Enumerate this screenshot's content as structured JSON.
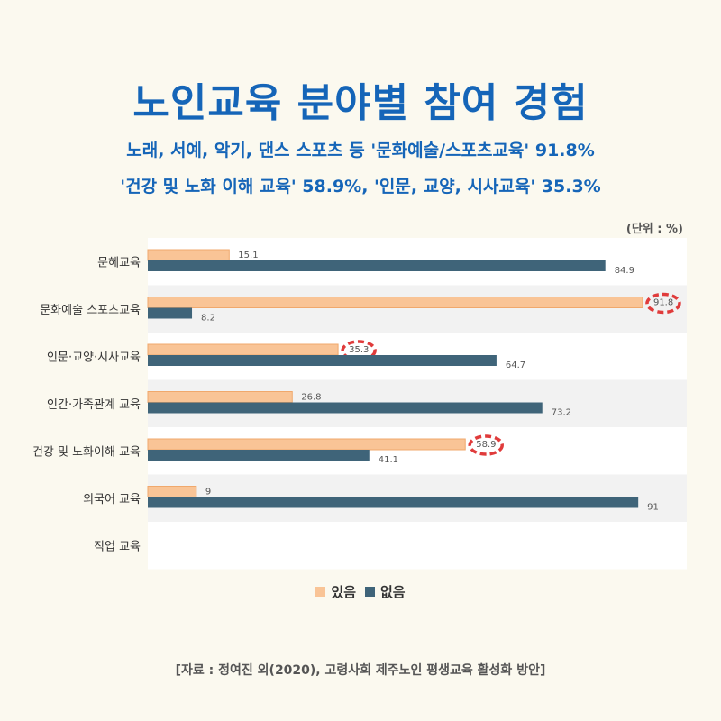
{
  "title": "노인교육 분야별 참여 경험",
  "subtitle_line1": "노래, 서예, 악기, 댄스 스포츠 등 '문화예술/스포츠교육' 91.8%",
  "subtitle_line2": "'건강 및 노화 이해 교육' 58.9%, '인문, 교양, 시사교육' 35.3%",
  "unit": "(단위 : %)",
  "source": "[자료 : 정여진 외(2020), 고령사회 제주노인 평생교육 활성화 방안]",
  "colors": {
    "yes": "#f9c496",
    "yes_stroke": "#f0a86c",
    "no": "#3f6479",
    "highlight": "#e03b3b",
    "band": "#f2f2f2"
  },
  "chart_data": {
    "type": "bar",
    "orientation": "horizontal",
    "categories": [
      "문헤교육",
      "문화예술 스포츠교육",
      "인문·교양·시사교육",
      "인간·가족관계 교육",
      "건강 및 노화이해 교육",
      "외국어 교육",
      "직업 교육"
    ],
    "series": [
      {
        "name": "있음",
        "values": [
          15.1,
          91.8,
          35.3,
          26.8,
          58.9,
          9,
          null
        ],
        "labels": [
          "15.1",
          "91.8",
          "35.3",
          "26.8",
          "58.9",
          "9",
          ""
        ]
      },
      {
        "name": "없음",
        "values": [
          84.9,
          8.2,
          64.7,
          73.2,
          41.1,
          91,
          null
        ],
        "labels": [
          "84.9",
          "8.2",
          "64.7",
          "73.2",
          "41.1",
          "91",
          ""
        ]
      }
    ],
    "highlighted": [
      {
        "series": 0,
        "index": 1
      },
      {
        "series": 0,
        "index": 2
      },
      {
        "series": 0,
        "index": 4
      }
    ],
    "xlim": [
      0,
      100
    ],
    "legend": "bottom"
  }
}
